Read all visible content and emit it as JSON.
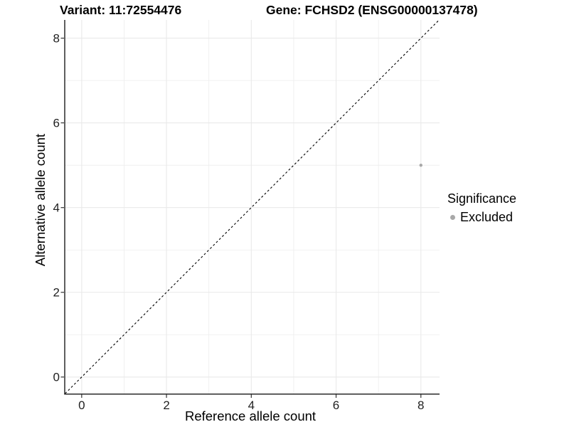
{
  "header": {
    "title_left": "Variant: 11:72554476",
    "title_right": "Gene: FCHSD2 (ENSG00000137478)"
  },
  "chart_data": {
    "type": "scatter",
    "title": "Variant: 11:72554476   Gene: FCHSD2 (ENSG00000137478)",
    "xlabel": "Reference allele count",
    "ylabel": "Alternative allele count",
    "xlim": [
      -0.4,
      8.44
    ],
    "ylim": [
      -0.39,
      8.43
    ],
    "x_ticks": [
      0,
      2,
      4,
      6,
      8
    ],
    "y_ticks": [
      0,
      2,
      4,
      6,
      8
    ],
    "x_minor": [
      1,
      3,
      5,
      7
    ],
    "y_minor": [
      1,
      3,
      5,
      7
    ],
    "grid": true,
    "points": [
      {
        "x": 8,
        "y": 5,
        "significance": "Excluded"
      }
    ],
    "identity_line": {
      "style": "dashed",
      "slope": 1,
      "intercept": 0
    },
    "legend": {
      "title": "Significance",
      "position": "right",
      "entries": [
        {
          "label": "Excluded",
          "color": "#a8a8a8"
        }
      ]
    },
    "colors": {
      "point": "#a8a8a8",
      "grid_major": "#e9e9e9",
      "grid_minor": "#ededed",
      "axis_line": "#2a2a2a",
      "tick_mark": "#333333",
      "identity_line": "#000000",
      "background": "#ffffff"
    }
  }
}
